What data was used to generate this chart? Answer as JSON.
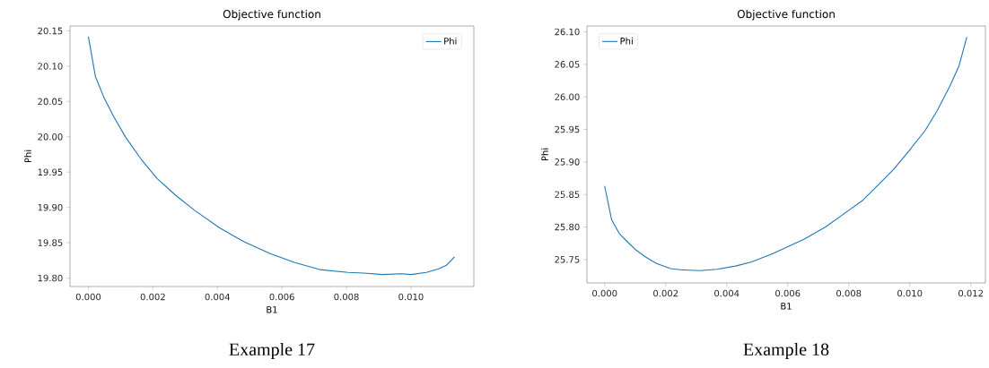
{
  "chart_data": [
    {
      "type": "line",
      "title": "Objective function",
      "xlabel": "B1",
      "ylabel": "Phi",
      "annotations": [
        "Example 17"
      ],
      "legend": "top right",
      "xlim": [
        -0.00057,
        0.01195
      ],
      "ylim": [
        19.788,
        20.157
      ],
      "xticks": [
        {
          "value": 0,
          "label": "0.000"
        },
        {
          "value": 0.002,
          "label": "0.002"
        },
        {
          "value": 0.004,
          "label": "0.004"
        },
        {
          "value": 0.006,
          "label": "0.006"
        },
        {
          "value": 0.008,
          "label": "0.008"
        },
        {
          "value": 0.01,
          "label": "0.010"
        }
      ],
      "yticks": [
        {
          "value": 19.8,
          "label": "19.80"
        },
        19.85,
        {
          "value": 19.9,
          "label": "19.90"
        },
        19.95,
        {
          "value": 20.0,
          "label": "20.00"
        },
        20.05,
        {
          "value": 20.1,
          "label": "20.10"
        },
        20.15
      ],
      "series": [
        {
          "name": "Phi",
          "color": "#1f77b4",
          "x": [
            0,
            0.00022,
            0.00048,
            0.00077,
            0.00116,
            0.00164,
            0.00213,
            0.00271,
            0.00329,
            0.00407,
            0.00484,
            0.00562,
            0.0064,
            0.00717,
            0.00805,
            0.00853,
            0.00912,
            0.0097,
            0.01,
            0.01048,
            0.01086,
            0.0111,
            0.01135
          ],
          "values": [
            20.142,
            20.085,
            20.056,
            20.03,
            19.999,
            19.968,
            19.941,
            19.917,
            19.896,
            19.871,
            19.851,
            19.835,
            19.822,
            19.812,
            19.808,
            19.807,
            19.805,
            19.806,
            19.805,
            19.808,
            19.813,
            19.818,
            19.83
          ]
        }
      ]
    },
    {
      "type": "line",
      "title": "Objective function",
      "xlabel": "B1",
      "ylabel": "Phi",
      "annotations": [
        "Example 18"
      ],
      "legend": "top left",
      "xlim": [
        -0.00058,
        0.01248
      ],
      "ylim": [
        25.714,
        26.109
      ],
      "xticks": [
        {
          "value": 0,
          "label": "0.000"
        },
        {
          "value": 0.002,
          "label": "0.002"
        },
        {
          "value": 0.004,
          "label": "0.004"
        },
        {
          "value": 0.006,
          "label": "0.006"
        },
        {
          "value": 0.008,
          "label": "0.008"
        },
        {
          "value": 0.01,
          "label": "0.010"
        },
        {
          "value": 0.012,
          "label": "0.012"
        }
      ],
      "yticks": [
        25.75,
        {
          "value": 25.8,
          "label": "25.80"
        },
        25.85,
        {
          "value": 25.9,
          "label": "25.90"
        },
        25.95,
        {
          "value": 26.0,
          "label": "26.00"
        },
        26.05,
        {
          "value": 26.1,
          "label": "26.10"
        }
      ],
      "series": [
        {
          "name": "Phi",
          "color": "#1f77b4",
          "x": [
            0,
            0.00023,
            0.00048,
            0.00073,
            0.00099,
            0.00134,
            0.0017,
            0.00216,
            0.00256,
            0.00312,
            0.00368,
            0.00429,
            0.0048,
            0.00551,
            0.00602,
            0.00653,
            0.00724,
            0.00795,
            0.00846,
            0.00897,
            0.00948,
            0.00999,
            0.0105,
            0.0109,
            0.01131,
            0.01161,
            0.01187
          ],
          "values": [
            25.863,
            25.811,
            25.79,
            25.778,
            25.766,
            25.754,
            25.744,
            25.736,
            25.734,
            25.733,
            25.735,
            25.74,
            25.746,
            25.759,
            25.77,
            25.781,
            25.8,
            25.824,
            25.841,
            25.865,
            25.889,
            25.918,
            25.948,
            25.979,
            26.016,
            26.047,
            26.092
          ]
        }
      ]
    }
  ]
}
